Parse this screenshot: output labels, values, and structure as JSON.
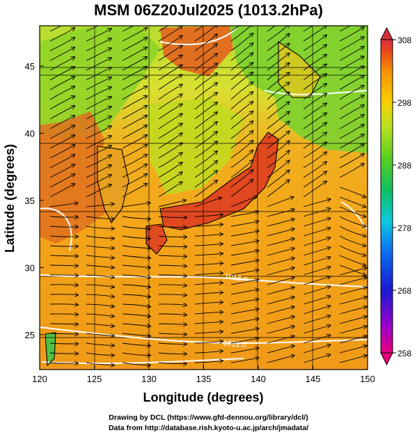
{
  "title": "MSM 06Z20Jul2025 (1013.2hPa)",
  "map": {
    "lon_range": [
      120,
      150
    ],
    "lat_range": [
      22.4,
      48
    ],
    "xlabel": "Longitude (degrees)",
    "ylabel": "Latitude  (degrees)",
    "x_ticks": [
      "120",
      "125",
      "130",
      "135",
      "140",
      "145",
      "150"
    ],
    "y_ticks": [
      "25",
      "30",
      "35",
      "40",
      "45"
    ],
    "grid": true,
    "field": "temperature (K) shaded, pressure contours (white), wind streamlines (black)",
    "contour_labels": [
      "1016.0",
      "1012.0"
    ]
  },
  "colorbar": {
    "range": [
      258,
      308
    ],
    "labels": [
      "308",
      "298",
      "288",
      "278",
      "268",
      "258"
    ],
    "colors": [
      "#e8007e",
      "#a000c8",
      "#1a1ad0",
      "#0a6cf0",
      "#10c8e0",
      "#10c060",
      "#58d020",
      "#b8e020",
      "#f8d000",
      "#f89000",
      "#e84020",
      "#d83040"
    ]
  },
  "credits": [
    "Drawing by DCL (https://www.gfd-dennou.org/library/dcl/)",
    "Data from http://database.rish.kyoto-u.ac.jp/arch/jmadata/"
  ]
}
